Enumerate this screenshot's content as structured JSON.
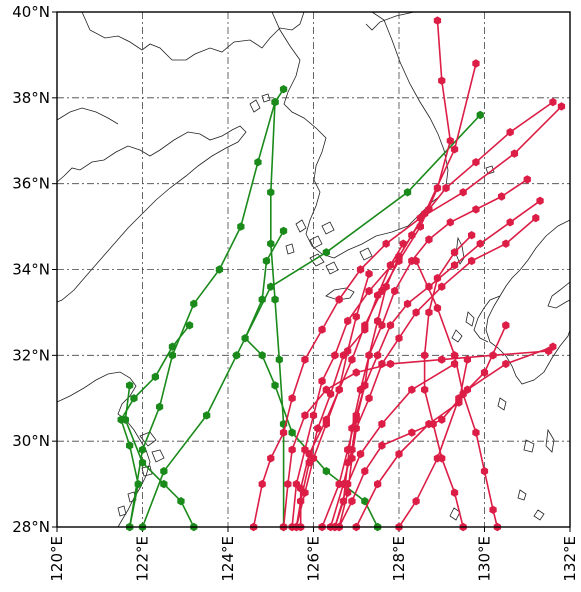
{
  "map": {
    "lon_range": [
      120,
      132
    ],
    "lat_range": [
      28,
      40
    ],
    "grid": true,
    "y_ticks": [
      {
        "value": 40,
        "label": "40°N"
      },
      {
        "value": 38,
        "label": "38°N"
      },
      {
        "value": 36,
        "label": "36°N"
      },
      {
        "value": 34,
        "label": "34°N"
      },
      {
        "value": 32,
        "label": "32°N"
      },
      {
        "value": 30,
        "label": "30°N"
      },
      {
        "value": 28,
        "label": "28°N"
      }
    ],
    "x_ticks": [
      {
        "value": 120,
        "label": "120°E"
      },
      {
        "value": 122,
        "label": "122°E"
      },
      {
        "value": 124,
        "label": "124°E"
      },
      {
        "value": 126,
        "label": "126°E"
      },
      {
        "value": 128,
        "label": "128°E"
      },
      {
        "value": 130,
        "label": "130°E"
      },
      {
        "value": 132,
        "label": "132°E"
      }
    ]
  },
  "colors": {
    "green": "#1a8a1a",
    "red": "#dc1e46",
    "coast": "#222222"
  },
  "tracks": [
    {
      "color": "green",
      "points": [
        [
          125.3,
          38.2
        ],
        [
          125.1,
          37.9
        ],
        [
          124.7,
          36.5
        ],
        [
          124.3,
          35.0
        ],
        [
          123.8,
          34.0
        ],
        [
          123.2,
          33.2
        ],
        [
          122.7,
          32.0
        ],
        [
          122.4,
          30.8
        ],
        [
          122.0,
          29.8
        ],
        [
          121.7,
          28.0
        ]
      ]
    },
    {
      "color": "green",
      "points": [
        [
          125.1,
          37.9
        ],
        [
          125.0,
          35.8
        ],
        [
          125.0,
          34.6
        ],
        [
          125.1,
          33.3
        ],
        [
          125.2,
          31.9
        ],
        [
          125.3,
          30.4
        ],
        [
          125.3,
          28.0
        ]
      ]
    },
    {
      "color": "green",
      "points": [
        [
          129.9,
          37.6
        ],
        [
          128.2,
          35.8
        ],
        [
          126.3,
          34.4
        ],
        [
          125.0,
          33.6
        ],
        [
          124.2,
          32.0
        ],
        [
          123.5,
          30.6
        ],
        [
          122.5,
          29.3
        ],
        [
          122.0,
          28.0
        ]
      ]
    },
    {
      "color": "green",
      "points": [
        [
          125.3,
          34.9
        ],
        [
          124.9,
          34.2
        ],
        [
          124.8,
          33.3
        ],
        [
          124.4,
          32.4
        ],
        [
          124.8,
          32.0
        ],
        [
          125.1,
          31.3
        ],
        [
          125.5,
          30.2
        ],
        [
          126.3,
          29.3
        ],
        [
          127.2,
          28.6
        ],
        [
          127.5,
          28.0
        ]
      ]
    },
    {
      "color": "green",
      "points": [
        [
          121.7,
          31.3
        ],
        [
          121.6,
          30.5
        ],
        [
          122.0,
          29.5
        ],
        [
          122.5,
          29.0
        ],
        [
          122.9,
          28.6
        ],
        [
          123.2,
          28.0
        ]
      ]
    },
    {
      "color": "green",
      "points": [
        [
          123.1,
          32.7
        ],
        [
          122.7,
          32.2
        ],
        [
          122.3,
          31.5
        ],
        [
          121.8,
          31.0
        ],
        [
          121.5,
          30.5
        ],
        [
          121.7,
          29.9
        ],
        [
          121.9,
          29.0
        ],
        [
          121.7,
          28.0
        ]
      ]
    },
    {
      "color": "red",
      "points": [
        [
          128.9,
          39.8
        ],
        [
          129.0,
          38.4
        ],
        [
          129.2,
          37.0
        ],
        [
          128.9,
          35.9
        ],
        [
          128.5,
          35.0
        ],
        [
          128.0,
          34.2
        ],
        [
          127.6,
          33.5
        ],
        [
          127.2,
          32.7
        ],
        [
          126.9,
          31.9
        ],
        [
          126.6,
          31.2
        ],
        [
          126.3,
          30.4
        ],
        [
          126.0,
          29.6
        ],
        [
          125.8,
          28.8
        ],
        [
          125.6,
          28.0
        ]
      ]
    },
    {
      "color": "red",
      "points": [
        [
          129.8,
          38.8
        ],
        [
          129.3,
          36.8
        ],
        [
          128.6,
          35.3
        ],
        [
          128.0,
          34.3
        ],
        [
          127.3,
          33.5
        ],
        [
          126.8,
          32.8
        ],
        [
          126.5,
          32.0
        ],
        [
          126.2,
          31.4
        ],
        [
          126.0,
          30.6
        ],
        [
          125.8,
          29.8
        ],
        [
          125.6,
          29.0
        ],
        [
          125.5,
          28.0
        ]
      ]
    },
    {
      "color": "red",
      "points": [
        [
          131.6,
          37.9
        ],
        [
          130.6,
          37.2
        ],
        [
          129.8,
          36.5
        ],
        [
          129.1,
          35.9
        ],
        [
          128.7,
          35.4
        ],
        [
          128.3,
          34.8
        ],
        [
          128.0,
          34.3
        ],
        [
          127.7,
          33.6
        ],
        [
          127.5,
          32.8
        ],
        [
          127.3,
          32.0
        ],
        [
          127.2,
          31.3
        ],
        [
          127.0,
          30.5
        ],
        [
          126.9,
          29.8
        ],
        [
          126.7,
          29.0
        ],
        [
          126.4,
          28.0
        ]
      ]
    },
    {
      "color": "red",
      "points": [
        [
          131.8,
          37.8
        ],
        [
          130.7,
          36.7
        ],
        [
          129.5,
          35.8
        ],
        [
          128.5,
          35.2
        ],
        [
          127.7,
          34.6
        ],
        [
          127.1,
          34.0
        ],
        [
          126.6,
          33.3
        ],
        [
          126.2,
          32.6
        ],
        [
          125.8,
          31.9
        ],
        [
          125.5,
          31.0
        ],
        [
          125.3,
          30.2
        ],
        [
          125.0,
          29.6
        ],
        [
          124.8,
          29.0
        ],
        [
          124.6,
          28.0
        ]
      ]
    },
    {
      "color": "red",
      "points": [
        [
          131.0,
          36.1
        ],
        [
          130.4,
          35.7
        ],
        [
          129.8,
          35.4
        ],
        [
          129.2,
          35.1
        ],
        [
          128.7,
          34.7
        ],
        [
          128.3,
          34.2
        ],
        [
          127.9,
          33.5
        ],
        [
          127.6,
          32.7
        ],
        [
          127.3,
          32.0
        ],
        [
          127.1,
          31.2
        ],
        [
          126.9,
          30.3
        ],
        [
          126.8,
          29.5
        ],
        [
          126.7,
          28.6
        ],
        [
          126.5,
          28.0
        ]
      ]
    },
    {
      "color": "red",
      "points": [
        [
          131.3,
          35.6
        ],
        [
          130.6,
          35.1
        ],
        [
          129.9,
          34.6
        ],
        [
          129.3,
          34.1
        ],
        [
          128.7,
          33.6
        ],
        [
          128.2,
          33.2
        ],
        [
          127.8,
          32.7
        ],
        [
          127.5,
          32.0
        ],
        [
          127.2,
          31.3
        ],
        [
          127.0,
          30.6
        ],
        [
          126.8,
          29.8
        ],
        [
          126.6,
          29.0
        ],
        [
          126.2,
          28.0
        ]
      ]
    },
    {
      "color": "red",
      "points": [
        [
          131.2,
          35.2
        ],
        [
          130.5,
          34.6
        ],
        [
          129.7,
          34.2
        ],
        [
          129.0,
          33.6
        ],
        [
          128.4,
          33.0
        ],
        [
          128.0,
          32.4
        ],
        [
          127.6,
          31.8
        ],
        [
          127.3,
          31.0
        ],
        [
          127.0,
          30.3
        ],
        [
          126.9,
          29.6
        ],
        [
          126.8,
          28.8
        ],
        [
          126.6,
          28.0
        ]
      ]
    },
    {
      "color": "red",
      "points": [
        [
          131.6,
          32.2
        ],
        [
          130.5,
          31.8
        ],
        [
          129.6,
          31.2
        ],
        [
          129.0,
          30.5
        ],
        [
          128.3,
          30.2
        ],
        [
          127.6,
          29.9
        ],
        [
          127.2,
          29.3
        ],
        [
          126.9,
          28.6
        ],
        [
          126.6,
          28.0
        ]
      ]
    },
    {
      "color": "red",
      "points": [
        [
          131.5,
          32.1
        ],
        [
          130.2,
          32.0
        ],
        [
          129.0,
          31.9
        ],
        [
          127.8,
          31.8
        ],
        [
          127.0,
          31.6
        ],
        [
          126.3,
          31.2
        ],
        [
          125.8,
          30.6
        ],
        [
          125.5,
          29.8
        ],
        [
          125.4,
          29.0
        ],
        [
          125.3,
          28.0
        ]
      ]
    },
    {
      "color": "red",
      "points": [
        [
          129.3,
          31.8
        ],
        [
          128.3,
          31.2
        ],
        [
          127.6,
          30.4
        ],
        [
          127.1,
          29.7
        ],
        [
          126.8,
          29.0
        ],
        [
          126.5,
          28.0
        ]
      ]
    },
    {
      "color": "red",
      "points": [
        [
          129.6,
          31.9
        ],
        [
          129.4,
          30.9
        ],
        [
          128.7,
          30.4
        ],
        [
          128.0,
          29.7
        ],
        [
          127.5,
          29.0
        ],
        [
          127.0,
          28.0
        ]
      ]
    },
    {
      "color": "red",
      "points": [
        [
          130.5,
          32.7
        ],
        [
          130.0,
          31.6
        ],
        [
          129.4,
          31.0
        ],
        [
          128.9,
          29.6
        ],
        [
          128.4,
          28.6
        ],
        [
          128.0,
          28.0
        ]
      ]
    },
    {
      "color": "red",
      "points": [
        [
          129.7,
          34.8
        ],
        [
          129.3,
          34.4
        ],
        [
          128.9,
          33.8
        ],
        [
          128.7,
          33.0
        ],
        [
          128.6,
          32.0
        ],
        [
          128.6,
          31.2
        ],
        [
          128.8,
          30.4
        ],
        [
          129.0,
          29.6
        ],
        [
          129.3,
          28.8
        ],
        [
          129.5,
          28.0
        ]
      ]
    },
    {
      "color": "red",
      "points": [
        [
          128.4,
          34.2
        ],
        [
          128.9,
          33.1
        ],
        [
          129.3,
          32.0
        ],
        [
          129.5,
          31.1
        ],
        [
          129.8,
          30.2
        ],
        [
          130.0,
          29.3
        ],
        [
          130.2,
          28.4
        ],
        [
          130.3,
          28.0
        ]
      ]
    },
    {
      "color": "red",
      "points": [
        [
          128.1,
          34.6
        ],
        [
          127.8,
          34.1
        ],
        [
          127.5,
          33.4
        ],
        [
          127.2,
          32.6
        ],
        [
          126.7,
          32.0
        ],
        [
          126.4,
          31.1
        ],
        [
          126.1,
          30.3
        ],
        [
          125.9,
          29.5
        ],
        [
          125.7,
          28.6
        ],
        [
          125.6,
          28.0
        ]
      ]
    },
    {
      "color": "red",
      "points": [
        [
          127.3,
          33.9
        ],
        [
          127.0,
          32.9
        ],
        [
          126.8,
          32.1
        ],
        [
          126.6,
          31.2
        ],
        [
          126.3,
          30.5
        ],
        [
          125.9,
          29.7
        ],
        [
          125.7,
          28.9
        ],
        [
          125.7,
          28.0
        ]
      ]
    }
  ]
}
